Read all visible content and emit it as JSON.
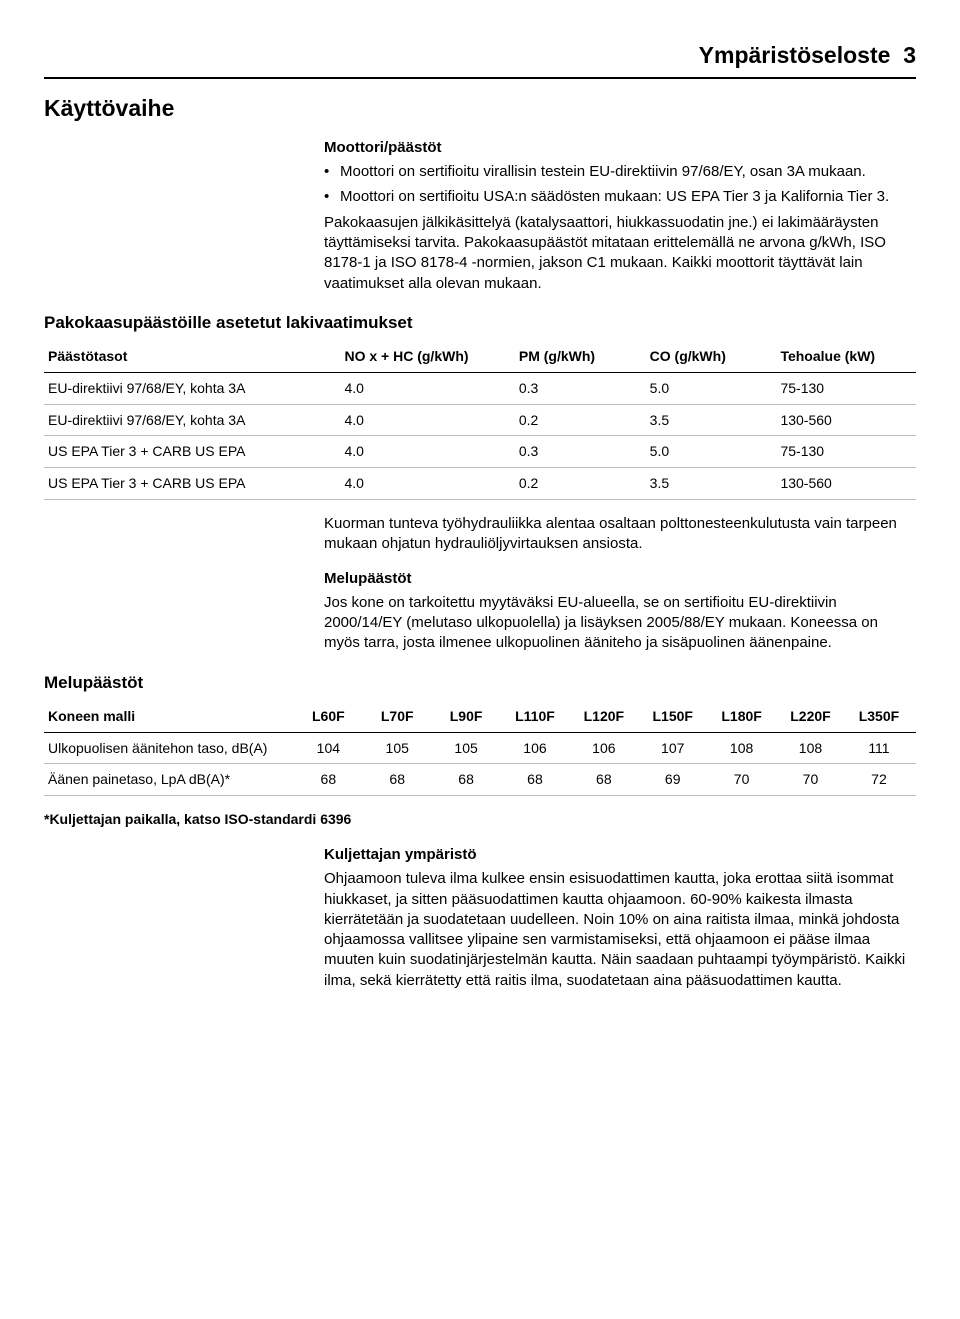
{
  "header": {
    "title": "Ympäristöseloste",
    "page_no": "3"
  },
  "s1": {
    "title": "Käyttövaihe",
    "engine_heading": "Moottori/päästöt",
    "bullets": [
      "Moottori on sertifioitu virallisin testein EU-direktiivin 97/68/EY, osan 3A mukaan.",
      "Moottori on sertifioitu USA:n säädösten mukaan: US EPA Tier 3 ja Kalifornia Tier 3."
    ],
    "para": "Pakokaasujen jälkikäsittelyä (katalysaattori, hiukkassuodatin jne.) ei lakimääräysten täyttämiseksi tarvita. Pakokaasupäästöt mitataan erittelemällä ne arvona g/kWh, ISO 8178-1 ja ISO 8178-4 -normien, jakson C1 mukaan. Kaikki moottorit täyttävät lain vaatimukset alla olevan mukaan."
  },
  "emissions": {
    "heading": "Pakokaasupäästöille asetetut lakivaatimukset",
    "columns": [
      "Päästötasot",
      "NO x + HC (g/kWh)",
      "PM (g/kWh)",
      "CO (g/kWh)",
      "Tehoalue (kW)"
    ],
    "col_widths": [
      "34%",
      "20%",
      "15%",
      "15%",
      "16%"
    ],
    "rows": [
      [
        "EU-direktiivi 97/68/EY, kohta 3A",
        "4.0",
        "0.3",
        "5.0",
        "75-130"
      ],
      [
        "EU-direktiivi 97/68/EY, kohta 3A",
        "4.0",
        "0.2",
        "3.5",
        "130-560"
      ],
      [
        "US EPA Tier 3 + CARB US EPA",
        "4.0",
        "0.3",
        "5.0",
        "75-130"
      ],
      [
        "US EPA Tier 3 + CARB US EPA",
        "4.0",
        "0.2",
        "3.5",
        "130-560"
      ]
    ]
  },
  "s2": {
    "para_hyd": "Kuorman tunteva työhydrauliikka alentaa osaltaan polttonesteenkulutusta vain tarpeen mukaan ohjatun hydrauliöljyvirtauksen ansiosta.",
    "noise_sub": "Melupäästöt",
    "para_noise": "Jos kone on tarkoitettu myytäväksi EU-alueella, se on sertifioitu EU-direktiivin 2000/14/EY (melutaso ulkopuolella) ja lisäyksen 2005/88/EY mukaan. Koneessa on myös tarra, josta ilmenee ulkopuolinen ääniteho ja sisäpuolinen äänenpaine."
  },
  "noise": {
    "heading": "Melupäästöt",
    "columns": [
      "Koneen malli",
      "L60F",
      "L70F",
      "L90F",
      "L110F",
      "L120F",
      "L150F",
      "L180F",
      "L220F",
      "L350F"
    ],
    "col_widths": [
      "29%",
      "7.9%",
      "7.9%",
      "7.9%",
      "7.9%",
      "7.9%",
      "7.9%",
      "7.9%",
      "7.9%",
      "7.9%"
    ],
    "rows": [
      [
        "Ulkopuolisen äänitehon taso, dB(A)",
        "104",
        "105",
        "105",
        "106",
        "106",
        "107",
        "108",
        "108",
        "111"
      ],
      [
        "Äänen painetaso, LpA dB(A)*",
        "68",
        "68",
        "68",
        "68",
        "68",
        "69",
        "70",
        "70",
        "72"
      ]
    ],
    "footnote": "*Kuljettajan paikalla, katso ISO-standardi 6396"
  },
  "s3": {
    "heading": "Kuljettajan ympäristö",
    "para": "Ohjaamoon tuleva ilma kulkee ensin esisuodattimen kautta, joka erottaa siitä isommat hiukkaset, ja sitten pääsuodattimen kautta ohjaamoon. 60-90% kaikesta ilmasta kierrätetään ja suodatetaan uudelleen. Noin 10% on aina raitista ilmaa, minkä johdosta ohjaamossa vallitsee ylipaine sen varmistamiseksi, että ohjaamoon ei pääse ilmaa muuten kuin suodatinjärjestelmän kautta. Näin saadaan puhtaampi työympäristö. Kaikki ilma, sekä kierrätetty että raitis ilma, suodatetaan aina pääsuodattimen kautta."
  }
}
